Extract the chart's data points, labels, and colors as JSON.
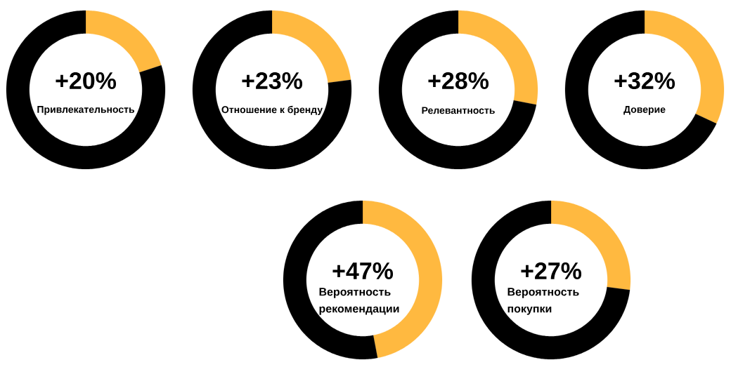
{
  "chart_data": [
    {
      "type": "donut",
      "title": "Привлекательность",
      "categories": [
        null,
        null
      ],
      "values": [
        20,
        80
      ],
      "colors": [
        "#ffb940",
        "#000000"
      ],
      "value_labels": [
        "+20%",
        null
      ]
    },
    {
      "type": "donut",
      "title": "Отношение к бренду",
      "categories": [
        null,
        null
      ],
      "values": [
        23,
        77
      ],
      "colors": [
        "#ffb940",
        "#000000"
      ],
      "value_labels": [
        "+23%",
        null
      ]
    },
    {
      "type": "donut",
      "title": "Релевантность",
      "categories": [
        null,
        null
      ],
      "values": [
        28,
        72
      ],
      "colors": [
        "#ffb940",
        "#000000"
      ],
      "value_labels": [
        "+28%",
        null
      ]
    },
    {
      "type": "donut",
      "title": "Доверие",
      "categories": [
        null,
        null
      ],
      "values": [
        32,
        68
      ],
      "colors": [
        "#ffb940",
        "#000000"
      ],
      "value_labels": [
        "+32%",
        null
      ]
    },
    {
      "type": "donut",
      "title": "Вероятность рекомендации",
      "categories": [
        null,
        null
      ],
      "values": [
        47,
        53
      ],
      "colors": [
        "#ffb940",
        "#000000"
      ],
      "value_labels": [
        "+47%",
        null
      ]
    },
    {
      "type": "donut",
      "title": "Вероятность покупки",
      "categories": [
        null,
        null
      ],
      "values": [
        27,
        73
      ],
      "colors": [
        "#ffb940",
        "#000000"
      ],
      "value_labels": [
        "+27%",
        null
      ]
    }
  ]
}
